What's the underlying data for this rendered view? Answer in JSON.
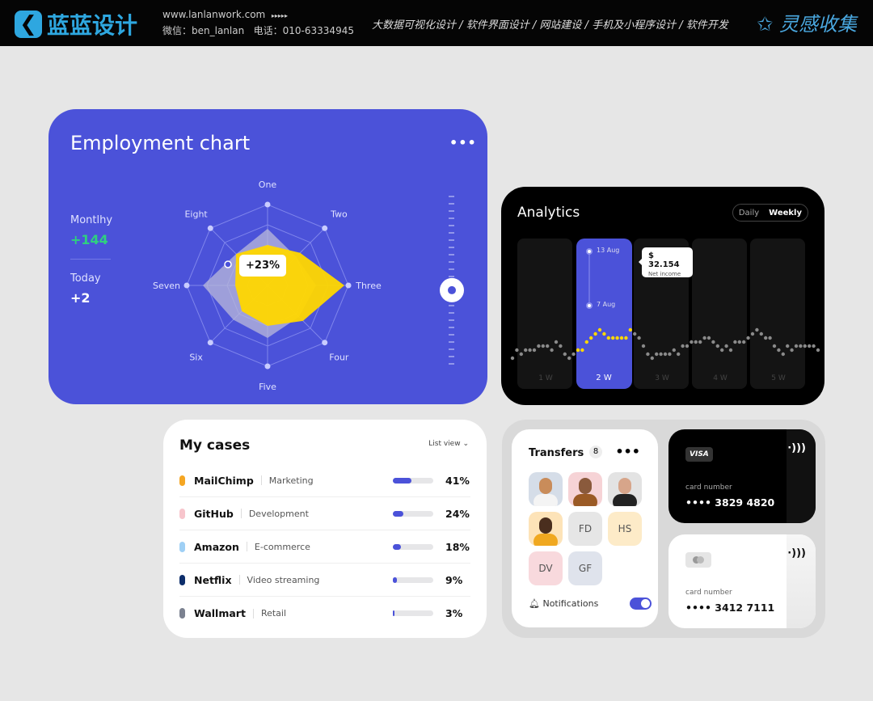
{
  "topbar": {
    "logo_text": "蓝蓝设计",
    "website": "www.lanlanwork.com",
    "arrows": "▸▸▸▸▸",
    "wechat": "微信：ben_lanlan",
    "phone": "电话：010-63334945",
    "nav": [
      "大数据可视化设计",
      "软件界面设计",
      "网站建设",
      "手机及小程序设计",
      "软件开发"
    ],
    "nav_sep": "/",
    "brand_right": "灵感收集"
  },
  "employment": {
    "title": "Employment chart",
    "menu": "•••",
    "monthly_label": "Montlhy",
    "monthly_value": "+144",
    "today_label": "Today",
    "today_value": "+2",
    "tooltip": "+23%",
    "slider_value": 0.56,
    "colors": {
      "bg": "#4b52d9",
      "yellow": "#ffd700",
      "green": "#2fd07f"
    }
  },
  "chart_data": {
    "type": "radar",
    "axes": [
      "One",
      "Two",
      "Three",
      "Four",
      "Five",
      "Six",
      "Seven",
      "Eight"
    ],
    "series": [
      {
        "values": [
          0.7,
          0.5,
          0.6,
          0.55,
          0.65,
          0.6,
          0.8,
          0.55
        ],
        "color": "#b9b9d9"
      },
      {
        "values": [
          0.5,
          0.57,
          0.95,
          0.62,
          0.5,
          0.45,
          0.4,
          0.55
        ],
        "color": "#ffd700"
      }
    ],
    "rings": 4
  },
  "analytics": {
    "title": "Analytics",
    "toggle": [
      "Daily",
      "Weekly"
    ],
    "active_toggle": "Weekly",
    "weeks": [
      "1 W",
      "2 W",
      "3 W",
      "4 W",
      "5 W"
    ],
    "active_week": "2 W",
    "range_start": "13 Aug",
    "range_end": "7 Aug",
    "tooltip_value": "$ 32.154",
    "tooltip_label": "Net income",
    "trend": [
      1,
      2,
      1.5,
      2,
      2,
      2,
      2.5,
      2.5,
      2.5,
      2,
      3,
      2.5,
      1.5,
      1,
      1.5,
      2,
      2,
      3,
      3.5,
      4,
      4.5,
      4,
      3.5,
      3.5,
      3.5,
      3.5,
      3.5,
      4.5,
      4,
      3.5,
      2.5,
      1.5,
      1,
      1.5,
      1.5,
      1.5,
      1.5,
      2,
      1.5,
      2.5,
      2.5,
      3,
      3,
      3,
      3.5,
      3.5,
      3,
      2.5,
      2,
      2.5,
      2,
      3,
      3,
      3,
      3.5,
      4,
      4.5,
      4,
      3.5,
      3.5,
      2.5,
      2,
      1.5,
      2.5,
      2,
      2.5,
      2.5,
      2.5,
      2.5,
      2.5,
      2
    ]
  },
  "cases": {
    "title": "My cases",
    "view": "List view",
    "items": [
      {
        "name": "MailChimp",
        "category": "Marketing",
        "percent": "41%",
        "value": 41,
        "color": "#f5a623"
      },
      {
        "name": "GitHub",
        "category": "Development",
        "percent": "24%",
        "value": 24,
        "color": "#f7c5cc"
      },
      {
        "name": "Amazon",
        "category": "E-commerce",
        "percent": "18%",
        "value": 18,
        "color": "#9fd0f5"
      },
      {
        "name": "Netflix",
        "category": "Video streaming",
        "percent": "9%",
        "value": 9,
        "color": "#0d2e6b"
      },
      {
        "name": "Wallmart",
        "category": "Retail",
        "percent": "3%",
        "value": 3,
        "color": "#7b8190"
      }
    ]
  },
  "transfers": {
    "title": "Transfers",
    "count": "8",
    "menu": "•••",
    "notifications": "Notifications",
    "notifications_on": true,
    "contacts": [
      {
        "initials": "",
        "bg": "#d5dde8"
      },
      {
        "initials": "",
        "bg": "#f6d3d6"
      },
      {
        "initials": "",
        "bg": "#e3e3e3"
      },
      {
        "initials": "",
        "bg": "#fde3b8"
      },
      {
        "initials": "FD",
        "bg": "#e6e6e6"
      },
      {
        "initials": "HS",
        "bg": "#fdebc8"
      },
      {
        "initials": "DV",
        "bg": "#f8d9dd"
      },
      {
        "initials": "GF",
        "bg": "#dfe3ec"
      }
    ]
  },
  "cards": [
    {
      "brand": "VISA",
      "label": "card number",
      "number": "•••• 3829 4820"
    },
    {
      "brand": "mastercard",
      "label": "card number",
      "number": "•••• 3412 7111"
    }
  ]
}
